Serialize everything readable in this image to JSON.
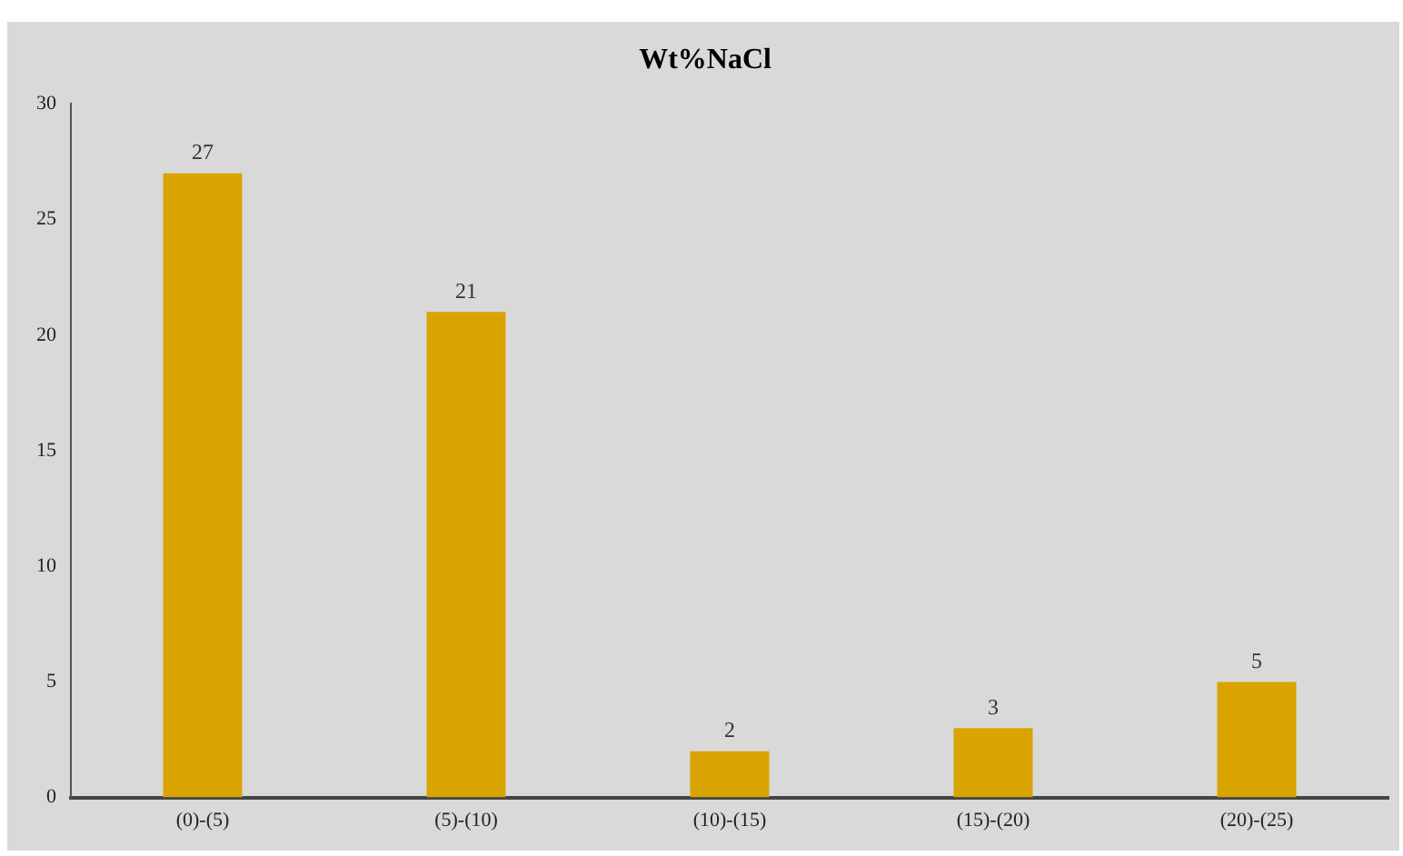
{
  "chart_data": {
    "type": "bar",
    "title": "Wt%NaCl",
    "categories": [
      "(0)-(5)",
      "(5)-(10)",
      "(10)-(15)",
      "(15)-(20)",
      "(20)-(25)"
    ],
    "values": [
      27,
      21,
      2,
      3,
      5
    ],
    "color": "#d9a400",
    "ylim": [
      0,
      30
    ],
    "yticks": [
      0,
      5,
      10,
      15,
      20,
      25,
      30
    ],
    "grid": false,
    "legend": false,
    "data_labels": true
  }
}
